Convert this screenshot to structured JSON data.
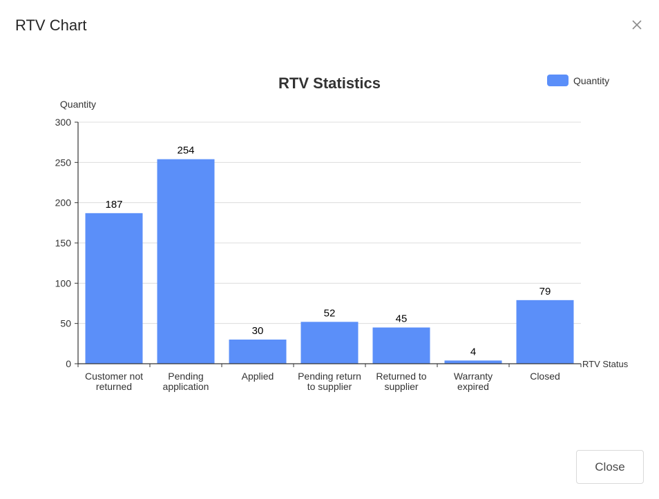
{
  "modal": {
    "title": "RTV Chart",
    "close_icon": "close-icon",
    "close_button_label": "Close"
  },
  "colors": {
    "bar": "#5b8ff9",
    "axis": "#333333",
    "grid": "#dcdcdc"
  },
  "chart_data": {
    "type": "bar",
    "title": "RTV Statistics",
    "xlabel": "RTV Status",
    "ylabel": "Quantity",
    "ylim": [
      0,
      300
    ],
    "yticks": [
      0,
      50,
      100,
      150,
      200,
      250,
      300
    ],
    "grid": true,
    "legend": {
      "position": "top-right",
      "label": "Quantity"
    },
    "categories": [
      [
        "Customer not",
        "returned"
      ],
      [
        "Pending",
        "application"
      ],
      [
        "Applied"
      ],
      [
        "Pending return",
        "to supplier"
      ],
      [
        "Returned to",
        "supplier"
      ],
      [
        "Warranty",
        "expired"
      ],
      [
        "Closed"
      ]
    ],
    "series": [
      {
        "name": "Quantity",
        "values": [
          187,
          254,
          30,
          52,
          45,
          4,
          79
        ]
      }
    ]
  }
}
